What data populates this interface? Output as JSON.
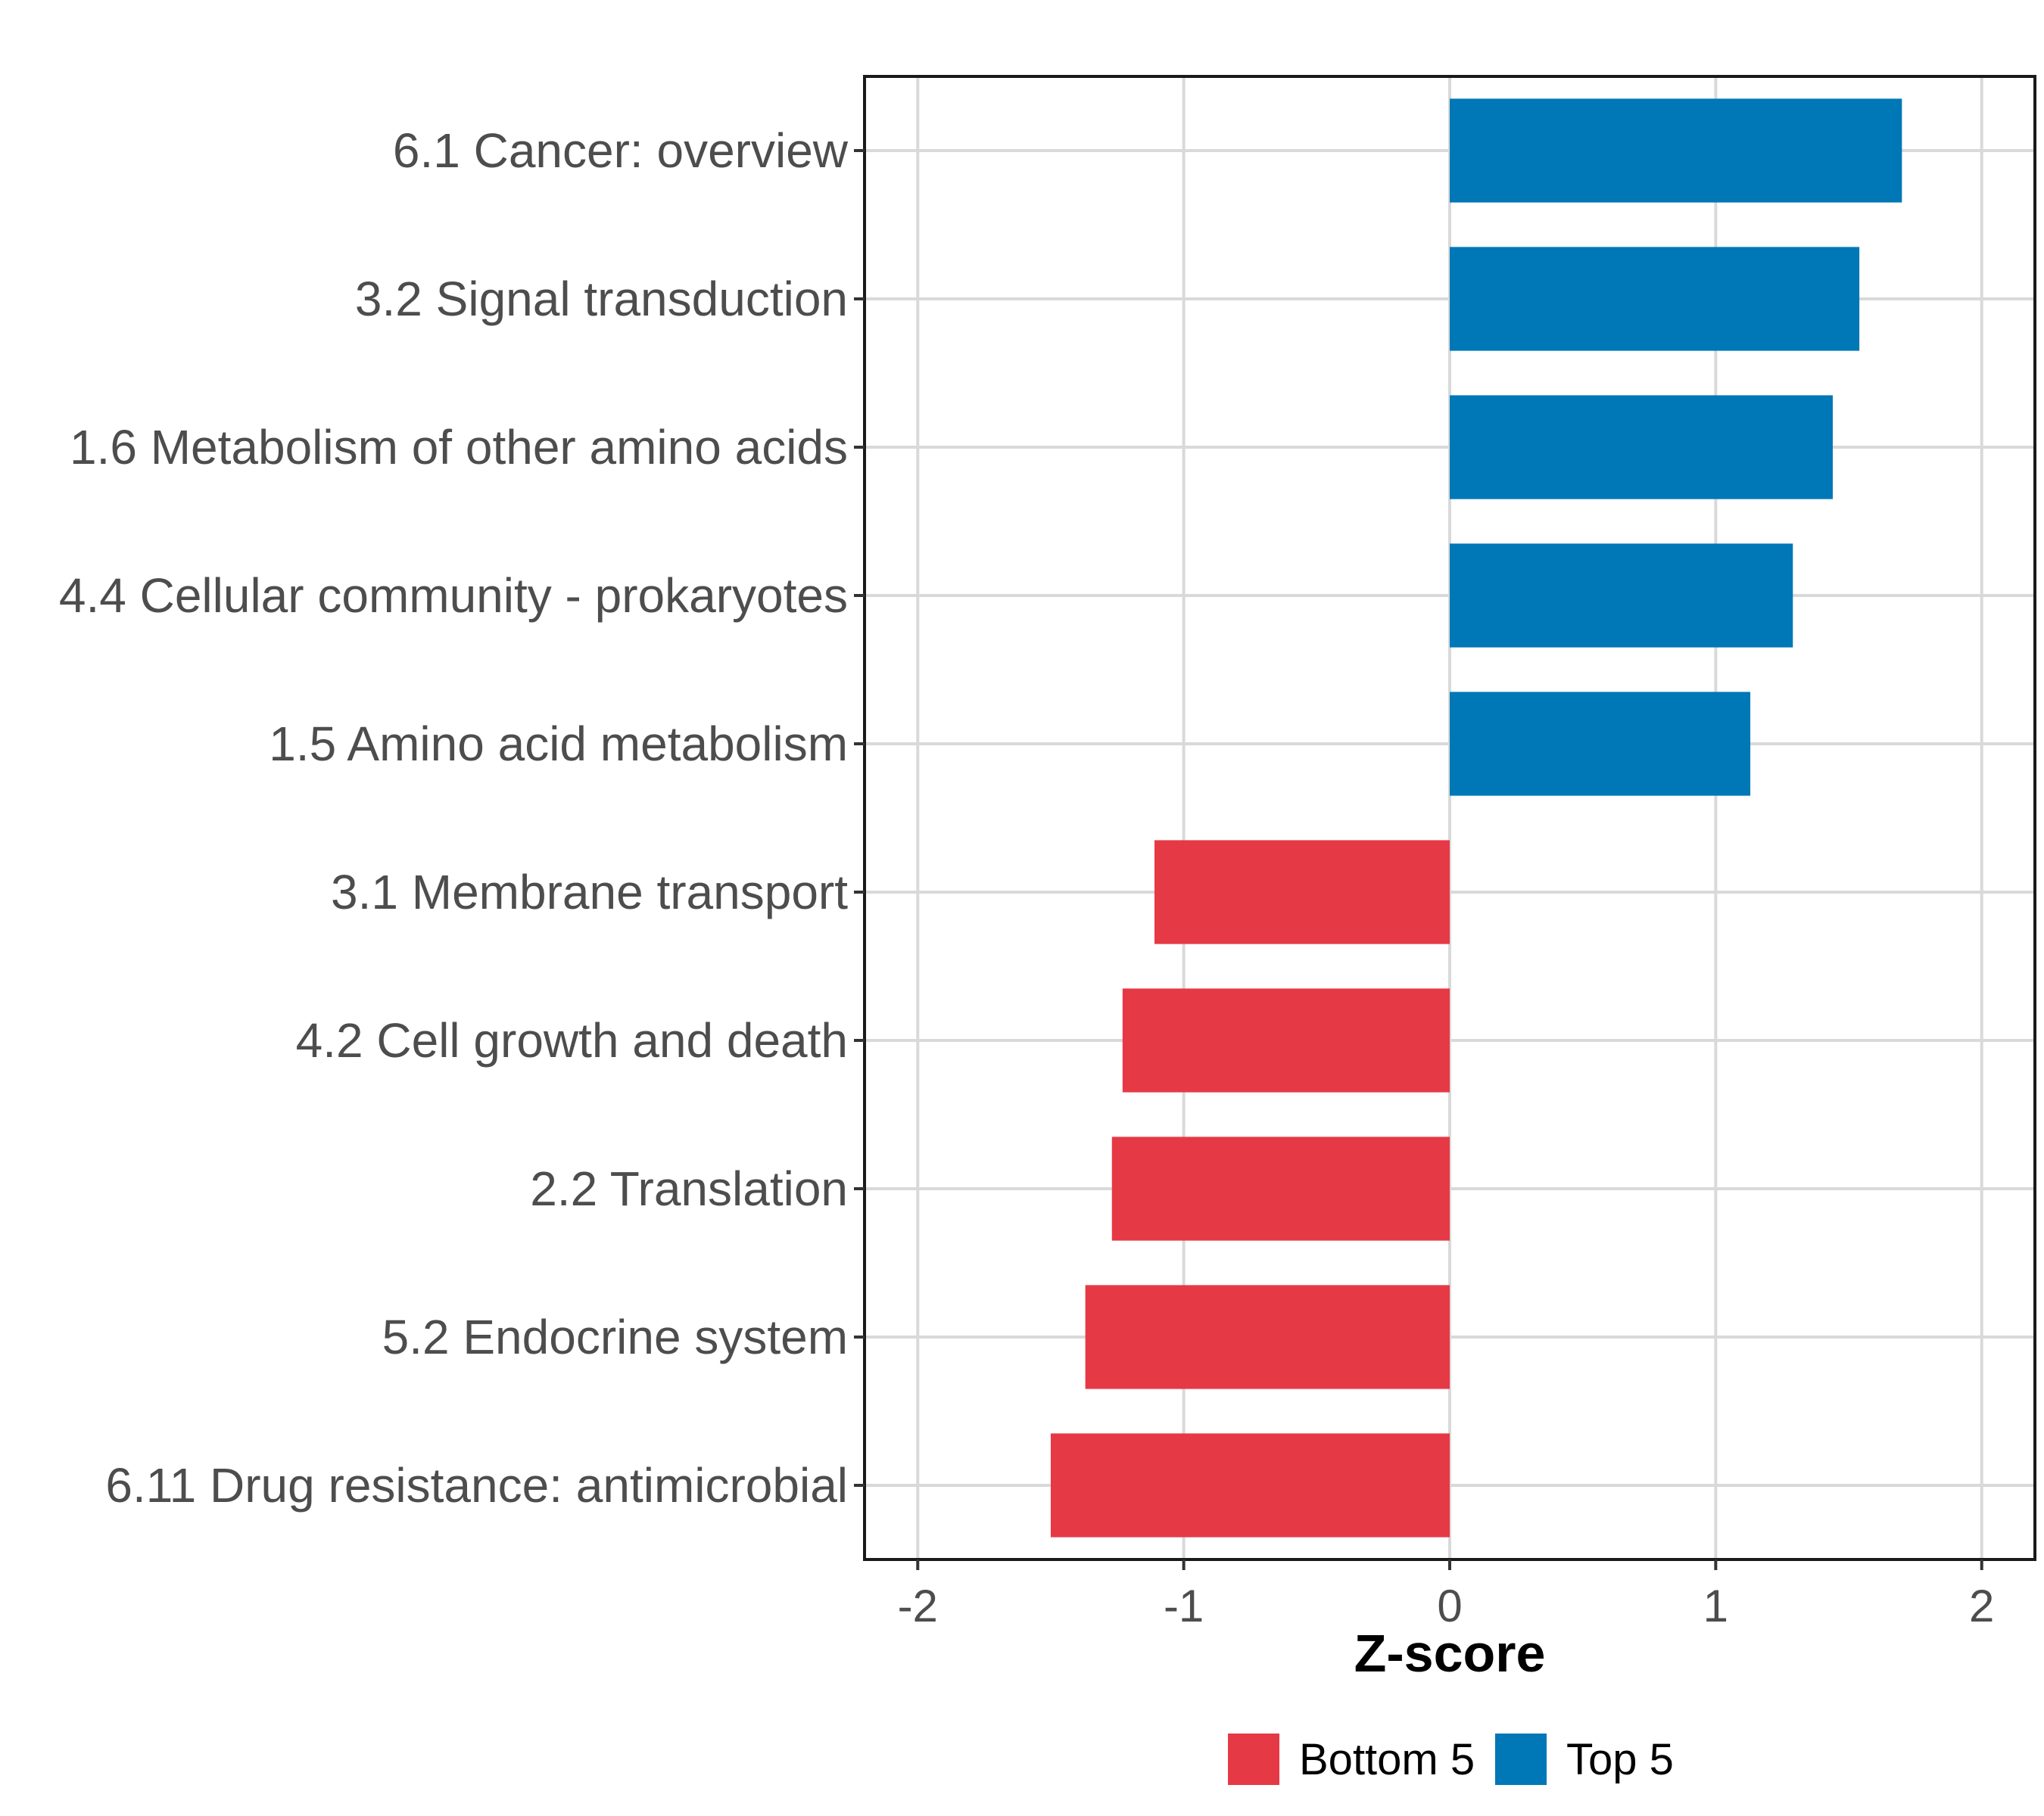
{
  "chart_data": {
    "type": "bar",
    "orientation": "horizontal",
    "title": "",
    "xlabel": "Z-score",
    "ylabel": "",
    "xlim": [
      -2.2,
      2.2
    ],
    "xticks": [
      -2,
      -1,
      0,
      1,
      2
    ],
    "xtick_labels": [
      "-2",
      "-1",
      "0",
      "1",
      "2"
    ],
    "grid": true,
    "categories": [
      "6.1 Cancer: overview",
      "3.2 Signal transduction",
      "1.6 Metabolism of other amino acids",
      "4.4 Cellular community - prokaryotes",
      "1.5 Amino acid metabolism",
      "3.1 Membrane transport",
      "4.2 Cell growth and death",
      "2.2 Translation",
      "5.2 Endocrine system",
      "6.11 Drug resistance: antimicrobial"
    ],
    "values": [
      1.7,
      1.54,
      1.44,
      1.29,
      1.13,
      -1.11,
      -1.23,
      -1.27,
      -1.37,
      -1.5
    ],
    "groups": [
      "Top 5",
      "Top 5",
      "Top 5",
      "Top 5",
      "Top 5",
      "Bottom 5",
      "Bottom 5",
      "Bottom 5",
      "Bottom 5",
      "Bottom 5"
    ],
    "legend": {
      "position": "bottom",
      "items": [
        {
          "label": "Bottom 5",
          "color": "#e63946"
        },
        {
          "label": "Top 5",
          "color": "#0077b6"
        }
      ]
    }
  }
}
